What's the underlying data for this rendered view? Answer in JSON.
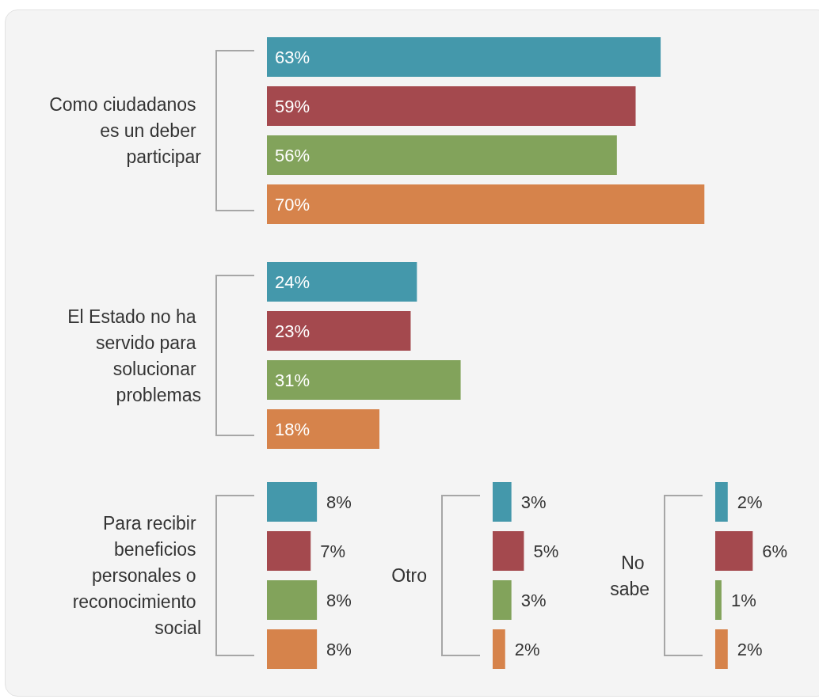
{
  "chart_data": [
    {
      "type": "bar",
      "orientation": "horizontal",
      "ylabel": "Como ciudadanos es un deber participar",
      "categories": [
        null,
        null,
        null,
        null
      ],
      "tick_labels": false,
      "values": [
        63,
        59,
        56,
        70
      ],
      "value_labels": [
        "63%",
        "59%",
        "56%",
        "70%"
      ],
      "colors": [
        "#4498ab",
        "#a4494e",
        "#82a35b",
        "#d6834b"
      ]
    },
    {
      "type": "bar",
      "orientation": "horizontal",
      "ylabel": "El Estado no ha servido para solucionar problemas",
      "categories": [
        null,
        null,
        null,
        null
      ],
      "tick_labels": false,
      "values": [
        24,
        23,
        31,
        18
      ],
      "value_labels": [
        "24%",
        "23%",
        "31%",
        "18%"
      ],
      "colors": [
        "#4498ab",
        "#a4494e",
        "#82a35b",
        "#d6834b"
      ]
    },
    {
      "type": "bar",
      "orientation": "horizontal",
      "ylabel": "Para recibir beneficios personales o reconocimiento social",
      "categories": [
        null,
        null,
        null,
        null
      ],
      "tick_labels": false,
      "values": [
        8,
        7,
        8,
        8
      ],
      "value_labels": [
        "8%",
        "7%",
        "8%",
        "8%"
      ],
      "colors": [
        "#4498ab",
        "#a4494e",
        "#82a35b",
        "#d6834b"
      ]
    },
    {
      "type": "bar",
      "orientation": "horizontal",
      "ylabel": "Otro",
      "categories": [
        null,
        null,
        null,
        null
      ],
      "tick_labels": false,
      "values": [
        3,
        5,
        3,
        2
      ],
      "value_labels": [
        "3%",
        "5%",
        "3%",
        "2%"
      ],
      "colors": [
        "#4498ab",
        "#a4494e",
        "#82a35b",
        "#d6834b"
      ]
    },
    {
      "type": "bar",
      "orientation": "horizontal",
      "ylabel": "No sabe",
      "categories": [
        null,
        null,
        null,
        null
      ],
      "tick_labels": false,
      "values": [
        2,
        6,
        1,
        2
      ],
      "value_labels": [
        "2%",
        "6%",
        "1%",
        "2%"
      ],
      "colors": [
        "#4498ab",
        "#a4494e",
        "#82a35b",
        "#d6834b"
      ]
    }
  ]
}
